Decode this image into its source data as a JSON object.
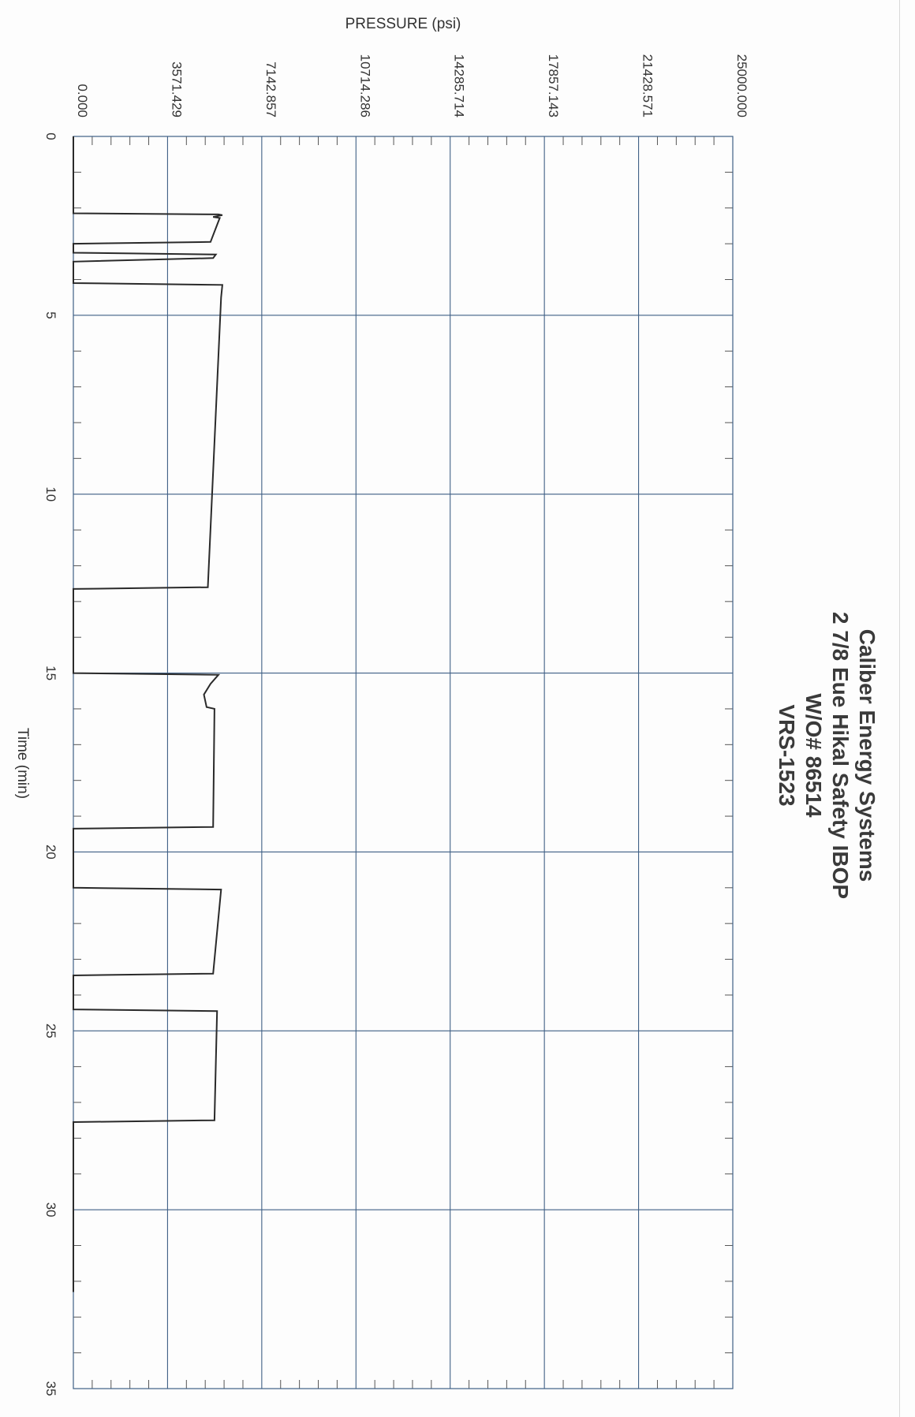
{
  "chart_data": {
    "type": "line",
    "orientation": "rotated-90-clockwise",
    "title_lines": [
      "Caliber Energy Systems",
      "2 7/8 Eue Hikal Safety IBOP",
      "W/O# 86514",
      "VRS-1523"
    ],
    "xlabel": "Time (min)",
    "ylabel": "PRESSURE (psi)",
    "xlim": [
      0,
      35
    ],
    "ylim": [
      0,
      25000
    ],
    "x_ticks": [
      "0",
      "5",
      "10",
      "15",
      "20",
      "25",
      "30",
      "35"
    ],
    "y_ticks": [
      "0.000",
      "3571.429",
      "7142.857",
      "10714.286",
      "14285.714",
      "17857.143",
      "21428.571",
      "25000.000"
    ],
    "grid": true,
    "line_color": "#2a2a2a",
    "grid_color": "#3f5f85",
    "series": [
      {
        "points": [
          [
            0,
            0
          ],
          [
            2.15,
            0
          ],
          [
            2.18,
            5500
          ],
          [
            2.2,
            5650
          ],
          [
            2.25,
            5300
          ],
          [
            2.28,
            5550
          ],
          [
            2.95,
            5200
          ],
          [
            3.0,
            0
          ],
          [
            3.05,
            0
          ],
          [
            3.1,
            0
          ],
          [
            3.25,
            0
          ],
          [
            3.3,
            5400
          ],
          [
            3.4,
            5300
          ],
          [
            3.5,
            0
          ],
          [
            4.1,
            0
          ],
          [
            4.15,
            5650
          ],
          [
            4.5,
            5600
          ],
          [
            12.6,
            5100
          ],
          [
            12.65,
            0
          ],
          [
            15.0,
            0
          ],
          [
            15.05,
            5500
          ],
          [
            15.3,
            5200
          ],
          [
            15.6,
            4950
          ],
          [
            15.95,
            5050
          ],
          [
            16.0,
            5350
          ],
          [
            19.3,
            5300
          ],
          [
            19.35,
            0
          ],
          [
            21.0,
            0
          ],
          [
            21.05,
            5600
          ],
          [
            23.4,
            5300
          ],
          [
            23.45,
            0
          ],
          [
            24.4,
            0
          ],
          [
            24.45,
            5450
          ],
          [
            27.5,
            5350
          ],
          [
            27.55,
            0
          ],
          [
            32.3,
            0
          ]
        ]
      }
    ]
  }
}
